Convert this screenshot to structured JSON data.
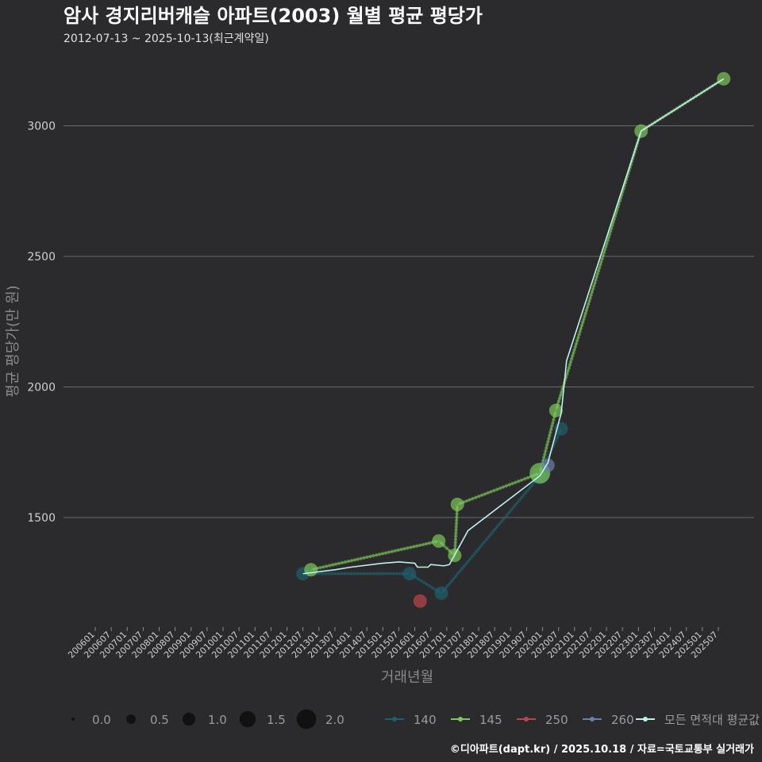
{
  "chart_data": {
    "type": "line",
    "title": "암사 경지리버캐슬 아파트(2003) 월별 평균 평당가",
    "subtitle": "2012-07-13 ~ 2025-10-13(최근계약일)",
    "xlabel": "거래년월",
    "ylabel": "평균 평당가(만 원)",
    "ylim": [
      1100,
      3300
    ],
    "yticks": [
      1500,
      2000,
      2500,
      3000
    ],
    "grid": true,
    "x_categories": [
      "200601",
      "200607",
      "200701",
      "200707",
      "200801",
      "200807",
      "200901",
      "200907",
      "201001",
      "201007",
      "201101",
      "201107",
      "201201",
      "201207",
      "201301",
      "201307",
      "201401",
      "201407",
      "201501",
      "201507",
      "201601",
      "201607",
      "201701",
      "201707",
      "201801",
      "201807",
      "201901",
      "201907",
      "202001",
      "202007",
      "202101",
      "202107",
      "202201",
      "202207",
      "202301",
      "202307",
      "202401",
      "202407",
      "202501",
      "202507"
    ],
    "size_legend": {
      "title": "",
      "entries": [
        {
          "label": "0.0",
          "value": 0.0
        },
        {
          "label": "0.5",
          "value": 0.5
        },
        {
          "label": "1.0",
          "value": 1.0
        },
        {
          "label": "1.5",
          "value": 1.5
        },
        {
          "label": "2.0",
          "value": 2.0
        }
      ]
    },
    "series": [
      {
        "name": "140",
        "color": "#1f5f6e",
        "points": [
          {
            "x": "201207",
            "y": 1285,
            "size": 1.0
          },
          {
            "x": "201511",
            "y": 1285,
            "size": 1.0
          },
          {
            "x": "201611",
            "y": 1210,
            "size": 1.0
          },
          {
            "x": "201912",
            "y": 1660,
            "size": 1.5
          },
          {
            "x": "202008",
            "y": 1840,
            "size": 1.0
          }
        ]
      },
      {
        "name": "145",
        "color": "#7ec85a",
        "points": [
          {
            "x": "201210",
            "y": 1300,
            "size": 1.0
          },
          {
            "x": "201610",
            "y": 1410,
            "size": 1.0
          },
          {
            "x": "201704",
            "y": 1355,
            "size": 1.0
          },
          {
            "x": "201705",
            "y": 1550,
            "size": 1.0
          },
          {
            "x": "201912",
            "y": 1670,
            "size": 2.0
          },
          {
            "x": "202006",
            "y": 1910,
            "size": 1.0
          },
          {
            "x": "202302",
            "y": 2980,
            "size": 1.0
          },
          {
            "x": "202509",
            "y": 3180,
            "size": 1.0
          }
        ]
      },
      {
        "name": "250",
        "color": "#c0444c",
        "points": [
          {
            "x": "201603",
            "y": 1180,
            "size": 1.0
          }
        ]
      },
      {
        "name": "260",
        "color": "#6a80a8",
        "points": [
          {
            "x": "202003",
            "y": 1700,
            "size": 1.0
          }
        ]
      }
    ],
    "average": {
      "name": "모든 면적대 평균값",
      "color": "#bff0f0",
      "points": [
        {
          "x": "201207",
          "y": 1285
        },
        {
          "x": "201307",
          "y": 1300
        },
        {
          "x": "201401",
          "y": 1310
        },
        {
          "x": "201501",
          "y": 1325
        },
        {
          "x": "201507",
          "y": 1330
        },
        {
          "x": "201601",
          "y": 1325
        },
        {
          "x": "201602",
          "y": 1310
        },
        {
          "x": "201606",
          "y": 1310
        },
        {
          "x": "201607",
          "y": 1320
        },
        {
          "x": "201612",
          "y": 1315
        },
        {
          "x": "201702",
          "y": 1320
        },
        {
          "x": "201709",
          "y": 1450
        },
        {
          "x": "201912",
          "y": 1660
        },
        {
          "x": "202003",
          "y": 1710
        },
        {
          "x": "202008",
          "y": 1900
        },
        {
          "x": "202010",
          "y": 2100
        },
        {
          "x": "202302",
          "y": 2980
        },
        {
          "x": "202509",
          "y": 3180
        }
      ]
    }
  },
  "footer": "©디아파트(dapt.kr) / 2025.10.18 / 자료=국토교통부 실거래가"
}
